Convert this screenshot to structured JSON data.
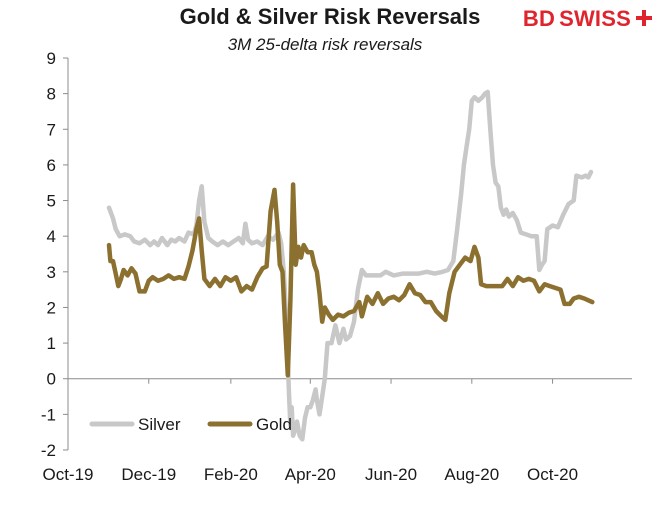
{
  "brand": {
    "part1": "BD",
    "part2": "SWISS",
    "color": "#e0242d"
  },
  "chart_data": {
    "type": "line",
    "title": "Gold & Silver Risk Reversals",
    "subtitle": "3M 25-delta risk reversals",
    "xlabel": "",
    "ylabel": "",
    "ylim": [
      -2,
      9
    ],
    "y_ticks": [
      -2,
      -1,
      0,
      1,
      2,
      3,
      4,
      5,
      6,
      7,
      8,
      9
    ],
    "x_range": [
      "2019-10-01",
      "2020-11-30"
    ],
    "x_ticks": [
      {
        "label": "Oct-19",
        "date": "2019-10-01"
      },
      {
        "label": "Dec-19",
        "date": "2019-12-01"
      },
      {
        "label": "Feb-20",
        "date": "2020-02-01"
      },
      {
        "label": "Apr-20",
        "date": "2020-04-01"
      },
      {
        "label": "Jun-20",
        "date": "2020-06-01"
      },
      {
        "label": "Aug-20",
        "date": "2020-08-01"
      },
      {
        "label": "Oct-20",
        "date": "2020-10-01"
      }
    ],
    "grid": false,
    "legend_position": "bottom-left",
    "series": [
      {
        "name": "Silver",
        "color": "#c8c8c8",
        "points": [
          [
            "2019-11-01",
            4.8
          ],
          [
            "2019-11-04",
            4.5
          ],
          [
            "2019-11-06",
            4.2
          ],
          [
            "2019-11-09",
            4.0
          ],
          [
            "2019-11-13",
            4.05
          ],
          [
            "2019-11-17",
            4.0
          ],
          [
            "2019-11-20",
            3.85
          ],
          [
            "2019-11-24",
            3.8
          ],
          [
            "2019-11-28",
            3.9
          ],
          [
            "2019-12-02",
            3.75
          ],
          [
            "2019-12-05",
            3.85
          ],
          [
            "2019-12-08",
            3.75
          ],
          [
            "2019-12-11",
            3.95
          ],
          [
            "2019-12-15",
            3.75
          ],
          [
            "2019-12-18",
            3.9
          ],
          [
            "2019-12-21",
            3.85
          ],
          [
            "2019-12-24",
            3.95
          ],
          [
            "2019-12-28",
            3.85
          ],
          [
            "2019-12-31",
            4.1
          ],
          [
            "2020-01-04",
            4.05
          ],
          [
            "2020-01-06",
            4.3
          ],
          [
            "2020-01-08",
            5.0
          ],
          [
            "2020-01-10",
            5.4
          ],
          [
            "2020-01-12",
            4.4
          ],
          [
            "2020-01-15",
            3.95
          ],
          [
            "2020-01-18",
            3.85
          ],
          [
            "2020-01-22",
            3.75
          ],
          [
            "2020-01-26",
            3.85
          ],
          [
            "2020-01-30",
            3.75
          ],
          [
            "2020-02-03",
            3.85
          ],
          [
            "2020-02-07",
            3.95
          ],
          [
            "2020-02-10",
            3.8
          ],
          [
            "2020-02-12",
            4.35
          ],
          [
            "2020-02-14",
            3.9
          ],
          [
            "2020-02-17",
            3.8
          ],
          [
            "2020-02-21",
            3.85
          ],
          [
            "2020-02-25",
            3.75
          ],
          [
            "2020-02-29",
            4.0
          ],
          [
            "2020-03-04",
            3.9
          ],
          [
            "2020-03-08",
            4.1
          ],
          [
            "2020-03-10",
            3.8
          ],
          [
            "2020-03-12",
            3.0
          ],
          [
            "2020-03-14",
            1.5
          ],
          [
            "2020-03-16",
            -0.5
          ],
          [
            "2020-03-17",
            -1.3
          ],
          [
            "2020-03-18",
            -0.8
          ],
          [
            "2020-03-19",
            -1.6
          ],
          [
            "2020-03-20",
            -1.5
          ],
          [
            "2020-03-22",
            -1.2
          ],
          [
            "2020-03-24",
            -1.6
          ],
          [
            "2020-03-26",
            -1.7
          ],
          [
            "2020-03-28",
            -1.1
          ],
          [
            "2020-03-30",
            -0.8
          ],
          [
            "2020-04-01",
            -0.8
          ],
          [
            "2020-04-03",
            -0.6
          ],
          [
            "2020-04-05",
            -0.3
          ],
          [
            "2020-04-06",
            -0.6
          ],
          [
            "2020-04-08",
            -1.0
          ],
          [
            "2020-04-10",
            -0.5
          ],
          [
            "2020-04-12",
            0.0
          ],
          [
            "2020-04-14",
            1.0
          ],
          [
            "2020-04-17",
            1.0
          ],
          [
            "2020-04-20",
            1.5
          ],
          [
            "2020-04-23",
            1.0
          ],
          [
            "2020-04-26",
            1.4
          ],
          [
            "2020-04-28",
            1.1
          ],
          [
            "2020-05-01",
            1.2
          ],
          [
            "2020-05-04",
            1.6
          ],
          [
            "2020-05-07",
            2.5
          ],
          [
            "2020-05-10",
            3.05
          ],
          [
            "2020-05-13",
            2.9
          ],
          [
            "2020-05-18",
            2.9
          ],
          [
            "2020-05-24",
            2.9
          ],
          [
            "2020-05-28",
            3.0
          ],
          [
            "2020-06-03",
            2.9
          ],
          [
            "2020-06-10",
            2.95
          ],
          [
            "2020-06-16",
            2.95
          ],
          [
            "2020-06-22",
            2.95
          ],
          [
            "2020-06-28",
            3.0
          ],
          [
            "2020-07-04",
            2.95
          ],
          [
            "2020-07-10",
            3.0
          ],
          [
            "2020-07-14",
            3.05
          ],
          [
            "2020-07-18",
            3.3
          ],
          [
            "2020-07-21",
            4.2
          ],
          [
            "2020-07-24",
            5.2
          ],
          [
            "2020-07-26",
            6.0
          ],
          [
            "2020-07-28",
            6.5
          ],
          [
            "2020-07-30",
            7.0
          ],
          [
            "2020-08-01",
            7.8
          ],
          [
            "2020-08-03",
            7.9
          ],
          [
            "2020-08-06",
            7.8
          ],
          [
            "2020-08-09",
            7.9
          ],
          [
            "2020-08-11",
            8.0
          ],
          [
            "2020-08-13",
            8.05
          ],
          [
            "2020-08-15",
            7.0
          ],
          [
            "2020-08-17",
            6.0
          ],
          [
            "2020-08-19",
            5.5
          ],
          [
            "2020-08-21",
            5.4
          ],
          [
            "2020-08-23",
            4.8
          ],
          [
            "2020-08-25",
            4.6
          ],
          [
            "2020-08-27",
            4.75
          ],
          [
            "2020-08-29",
            4.55
          ],
          [
            "2020-09-01",
            4.65
          ],
          [
            "2020-09-04",
            4.45
          ],
          [
            "2020-09-07",
            4.1
          ],
          [
            "2020-09-11",
            4.05
          ],
          [
            "2020-09-15",
            4.0
          ],
          [
            "2020-09-19",
            4.0
          ],
          [
            "2020-09-21",
            3.05
          ],
          [
            "2020-09-23",
            3.2
          ],
          [
            "2020-09-25",
            3.3
          ],
          [
            "2020-09-27",
            4.2
          ],
          [
            "2020-10-01",
            4.3
          ],
          [
            "2020-10-05",
            4.25
          ],
          [
            "2020-10-09",
            4.6
          ],
          [
            "2020-10-13",
            4.9
          ],
          [
            "2020-10-17",
            5.0
          ],
          [
            "2020-10-19",
            5.7
          ],
          [
            "2020-10-23",
            5.65
          ],
          [
            "2020-10-26",
            5.7
          ],
          [
            "2020-10-28",
            5.65
          ],
          [
            "2020-10-30",
            5.8
          ]
        ]
      },
      {
        "name": "Gold",
        "color": "#8b7030",
        "points": [
          [
            "2019-11-01",
            3.75
          ],
          [
            "2019-11-02",
            3.3
          ],
          [
            "2019-11-04",
            3.3
          ],
          [
            "2019-11-06",
            2.95
          ],
          [
            "2019-11-08",
            2.6
          ],
          [
            "2019-11-10",
            2.8
          ],
          [
            "2019-11-12",
            3.05
          ],
          [
            "2019-11-15",
            2.9
          ],
          [
            "2019-11-18",
            3.1
          ],
          [
            "2019-11-21",
            2.95
          ],
          [
            "2019-11-24",
            2.45
          ],
          [
            "2019-11-28",
            2.45
          ],
          [
            "2019-12-01",
            2.75
          ],
          [
            "2019-12-04",
            2.85
          ],
          [
            "2019-12-08",
            2.75
          ],
          [
            "2019-12-12",
            2.8
          ],
          [
            "2019-12-16",
            2.9
          ],
          [
            "2019-12-20",
            2.8
          ],
          [
            "2019-12-24",
            2.85
          ],
          [
            "2019-12-28",
            2.8
          ],
          [
            "2019-12-31",
            3.15
          ],
          [
            "2020-01-03",
            3.6
          ],
          [
            "2020-01-06",
            4.2
          ],
          [
            "2020-01-08",
            4.5
          ],
          [
            "2020-01-10",
            3.6
          ],
          [
            "2020-01-12",
            2.8
          ],
          [
            "2020-01-16",
            2.6
          ],
          [
            "2020-01-20",
            2.8
          ],
          [
            "2020-01-24",
            2.6
          ],
          [
            "2020-01-28",
            2.85
          ],
          [
            "2020-02-01",
            2.75
          ],
          [
            "2020-02-05",
            2.85
          ],
          [
            "2020-02-09",
            2.45
          ],
          [
            "2020-02-13",
            2.6
          ],
          [
            "2020-02-17",
            2.5
          ],
          [
            "2020-02-21",
            2.85
          ],
          [
            "2020-02-25",
            3.1
          ],
          [
            "2020-02-28",
            3.15
          ],
          [
            "2020-03-02",
            4.7
          ],
          [
            "2020-03-05",
            5.3
          ],
          [
            "2020-03-07",
            4.4
          ],
          [
            "2020-03-09",
            3.2
          ],
          [
            "2020-03-11",
            3.0
          ],
          [
            "2020-03-13",
            1.5
          ],
          [
            "2020-03-15",
            0.1
          ],
          [
            "2020-03-17",
            2.2
          ],
          [
            "2020-03-19",
            5.45
          ],
          [
            "2020-03-21",
            3.2
          ],
          [
            "2020-03-23",
            3.7
          ],
          [
            "2020-03-25",
            3.4
          ],
          [
            "2020-03-27",
            3.75
          ],
          [
            "2020-03-30",
            3.55
          ],
          [
            "2020-04-02",
            3.55
          ],
          [
            "2020-04-04",
            3.2
          ],
          [
            "2020-04-06",
            3.0
          ],
          [
            "2020-04-08",
            2.4
          ],
          [
            "2020-04-10",
            1.6
          ],
          [
            "2020-04-12",
            2.0
          ],
          [
            "2020-04-15",
            1.8
          ],
          [
            "2020-04-18",
            1.65
          ],
          [
            "2020-04-22",
            1.8
          ],
          [
            "2020-04-26",
            1.75
          ],
          [
            "2020-04-30",
            1.85
          ],
          [
            "2020-05-04",
            1.9
          ],
          [
            "2020-05-08",
            2.15
          ],
          [
            "2020-05-10",
            1.75
          ],
          [
            "2020-05-14",
            2.3
          ],
          [
            "2020-05-18",
            2.1
          ],
          [
            "2020-05-22",
            2.4
          ],
          [
            "2020-05-26",
            2.1
          ],
          [
            "2020-05-30",
            2.25
          ],
          [
            "2020-06-03",
            2.3
          ],
          [
            "2020-06-07",
            2.2
          ],
          [
            "2020-06-11",
            2.35
          ],
          [
            "2020-06-15",
            2.65
          ],
          [
            "2020-06-19",
            2.4
          ],
          [
            "2020-06-23",
            2.35
          ],
          [
            "2020-06-27",
            2.15
          ],
          [
            "2020-07-01",
            2.15
          ],
          [
            "2020-07-05",
            1.9
          ],
          [
            "2020-07-09",
            1.75
          ],
          [
            "2020-07-12",
            1.65
          ],
          [
            "2020-07-15",
            2.4
          ],
          [
            "2020-07-19",
            3.0
          ],
          [
            "2020-07-23",
            3.2
          ],
          [
            "2020-07-27",
            3.4
          ],
          [
            "2020-07-31",
            3.3
          ],
          [
            "2020-08-03",
            3.7
          ],
          [
            "2020-08-06",
            3.4
          ],
          [
            "2020-08-08",
            2.65
          ],
          [
            "2020-08-12",
            2.6
          ],
          [
            "2020-08-16",
            2.6
          ],
          [
            "2020-08-20",
            2.6
          ],
          [
            "2020-08-24",
            2.6
          ],
          [
            "2020-08-28",
            2.8
          ],
          [
            "2020-09-01",
            2.6
          ],
          [
            "2020-09-05",
            2.85
          ],
          [
            "2020-09-09",
            2.75
          ],
          [
            "2020-09-13",
            2.8
          ],
          [
            "2020-09-17",
            2.75
          ],
          [
            "2020-09-21",
            2.45
          ],
          [
            "2020-09-25",
            2.65
          ],
          [
            "2020-09-29",
            2.6
          ],
          [
            "2020-10-03",
            2.55
          ],
          [
            "2020-10-07",
            2.5
          ],
          [
            "2020-10-10",
            2.1
          ],
          [
            "2020-10-14",
            2.1
          ],
          [
            "2020-10-17",
            2.25
          ],
          [
            "2020-10-21",
            2.3
          ],
          [
            "2020-10-25",
            2.25
          ],
          [
            "2020-10-28",
            2.2
          ],
          [
            "2020-10-31",
            2.15
          ]
        ]
      }
    ]
  }
}
